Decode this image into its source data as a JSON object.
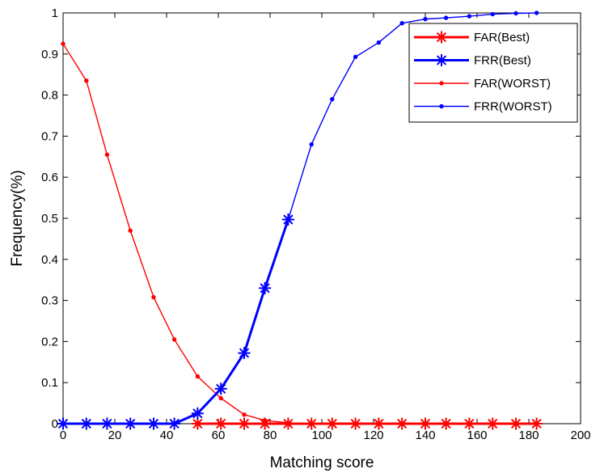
{
  "chart_data": {
    "type": "line",
    "title": "",
    "xlabel": "Matching score",
    "ylabel": "Frequency(%)",
    "xlim": [
      0,
      200
    ],
    "ylim": [
      0,
      1
    ],
    "xticks": [
      0,
      20,
      40,
      60,
      80,
      100,
      120,
      140,
      160,
      180,
      200
    ],
    "yticks": [
      0,
      0.1,
      0.2,
      0.3,
      0.4,
      0.5,
      0.6,
      0.7,
      0.8,
      0.9,
      1
    ],
    "ytick_labels": [
      "0",
      "0.1",
      "0.2",
      "0.3",
      "0.4",
      "0.5",
      "0.6",
      "0.7",
      "0.8",
      "0.9",
      "1"
    ],
    "grid": false,
    "legend_position": "top-right",
    "series": [
      {
        "name": "FAR(Best)",
        "color": "#ff0000",
        "marker": "star",
        "x": [
          52,
          61,
          70,
          78,
          87,
          96,
          104,
          113,
          122,
          131,
          140,
          148,
          157,
          166,
          175,
          183
        ],
        "y": [
          0,
          0,
          0,
          0,
          0,
          0,
          0,
          0,
          0,
          0,
          0,
          0,
          0,
          0,
          0,
          0
        ]
      },
      {
        "name": "FRR(Best)",
        "color": "#0000ff",
        "marker": "star",
        "x": [
          0,
          9,
          17,
          26,
          35,
          43,
          52,
          61,
          70,
          78,
          87
        ],
        "y": [
          0,
          0,
          0,
          0,
          0,
          0,
          0.025,
          0.085,
          0.172,
          0.33,
          0.497
        ]
      },
      {
        "name": "FAR(WORST)",
        "color": "#ff0000",
        "marker": "dot",
        "x": [
          0,
          9,
          17,
          26,
          35,
          43,
          52,
          61,
          70,
          78,
          87,
          96
        ],
        "y": [
          0.925,
          0.835,
          0.655,
          0.47,
          0.308,
          0.205,
          0.115,
          0.062,
          0.022,
          0.008,
          0.002,
          0
        ]
      },
      {
        "name": "FRR(WORST)",
        "color": "#0000ff",
        "marker": "dot",
        "x": [
          87,
          96,
          104,
          113,
          122,
          131,
          140,
          148,
          157,
          166,
          175,
          183
        ],
        "y": [
          0.497,
          0.68,
          0.79,
          0.893,
          0.928,
          0.975,
          0.985,
          0.988,
          0.992,
          0.997,
          0.999,
          1.0
        ]
      }
    ]
  }
}
